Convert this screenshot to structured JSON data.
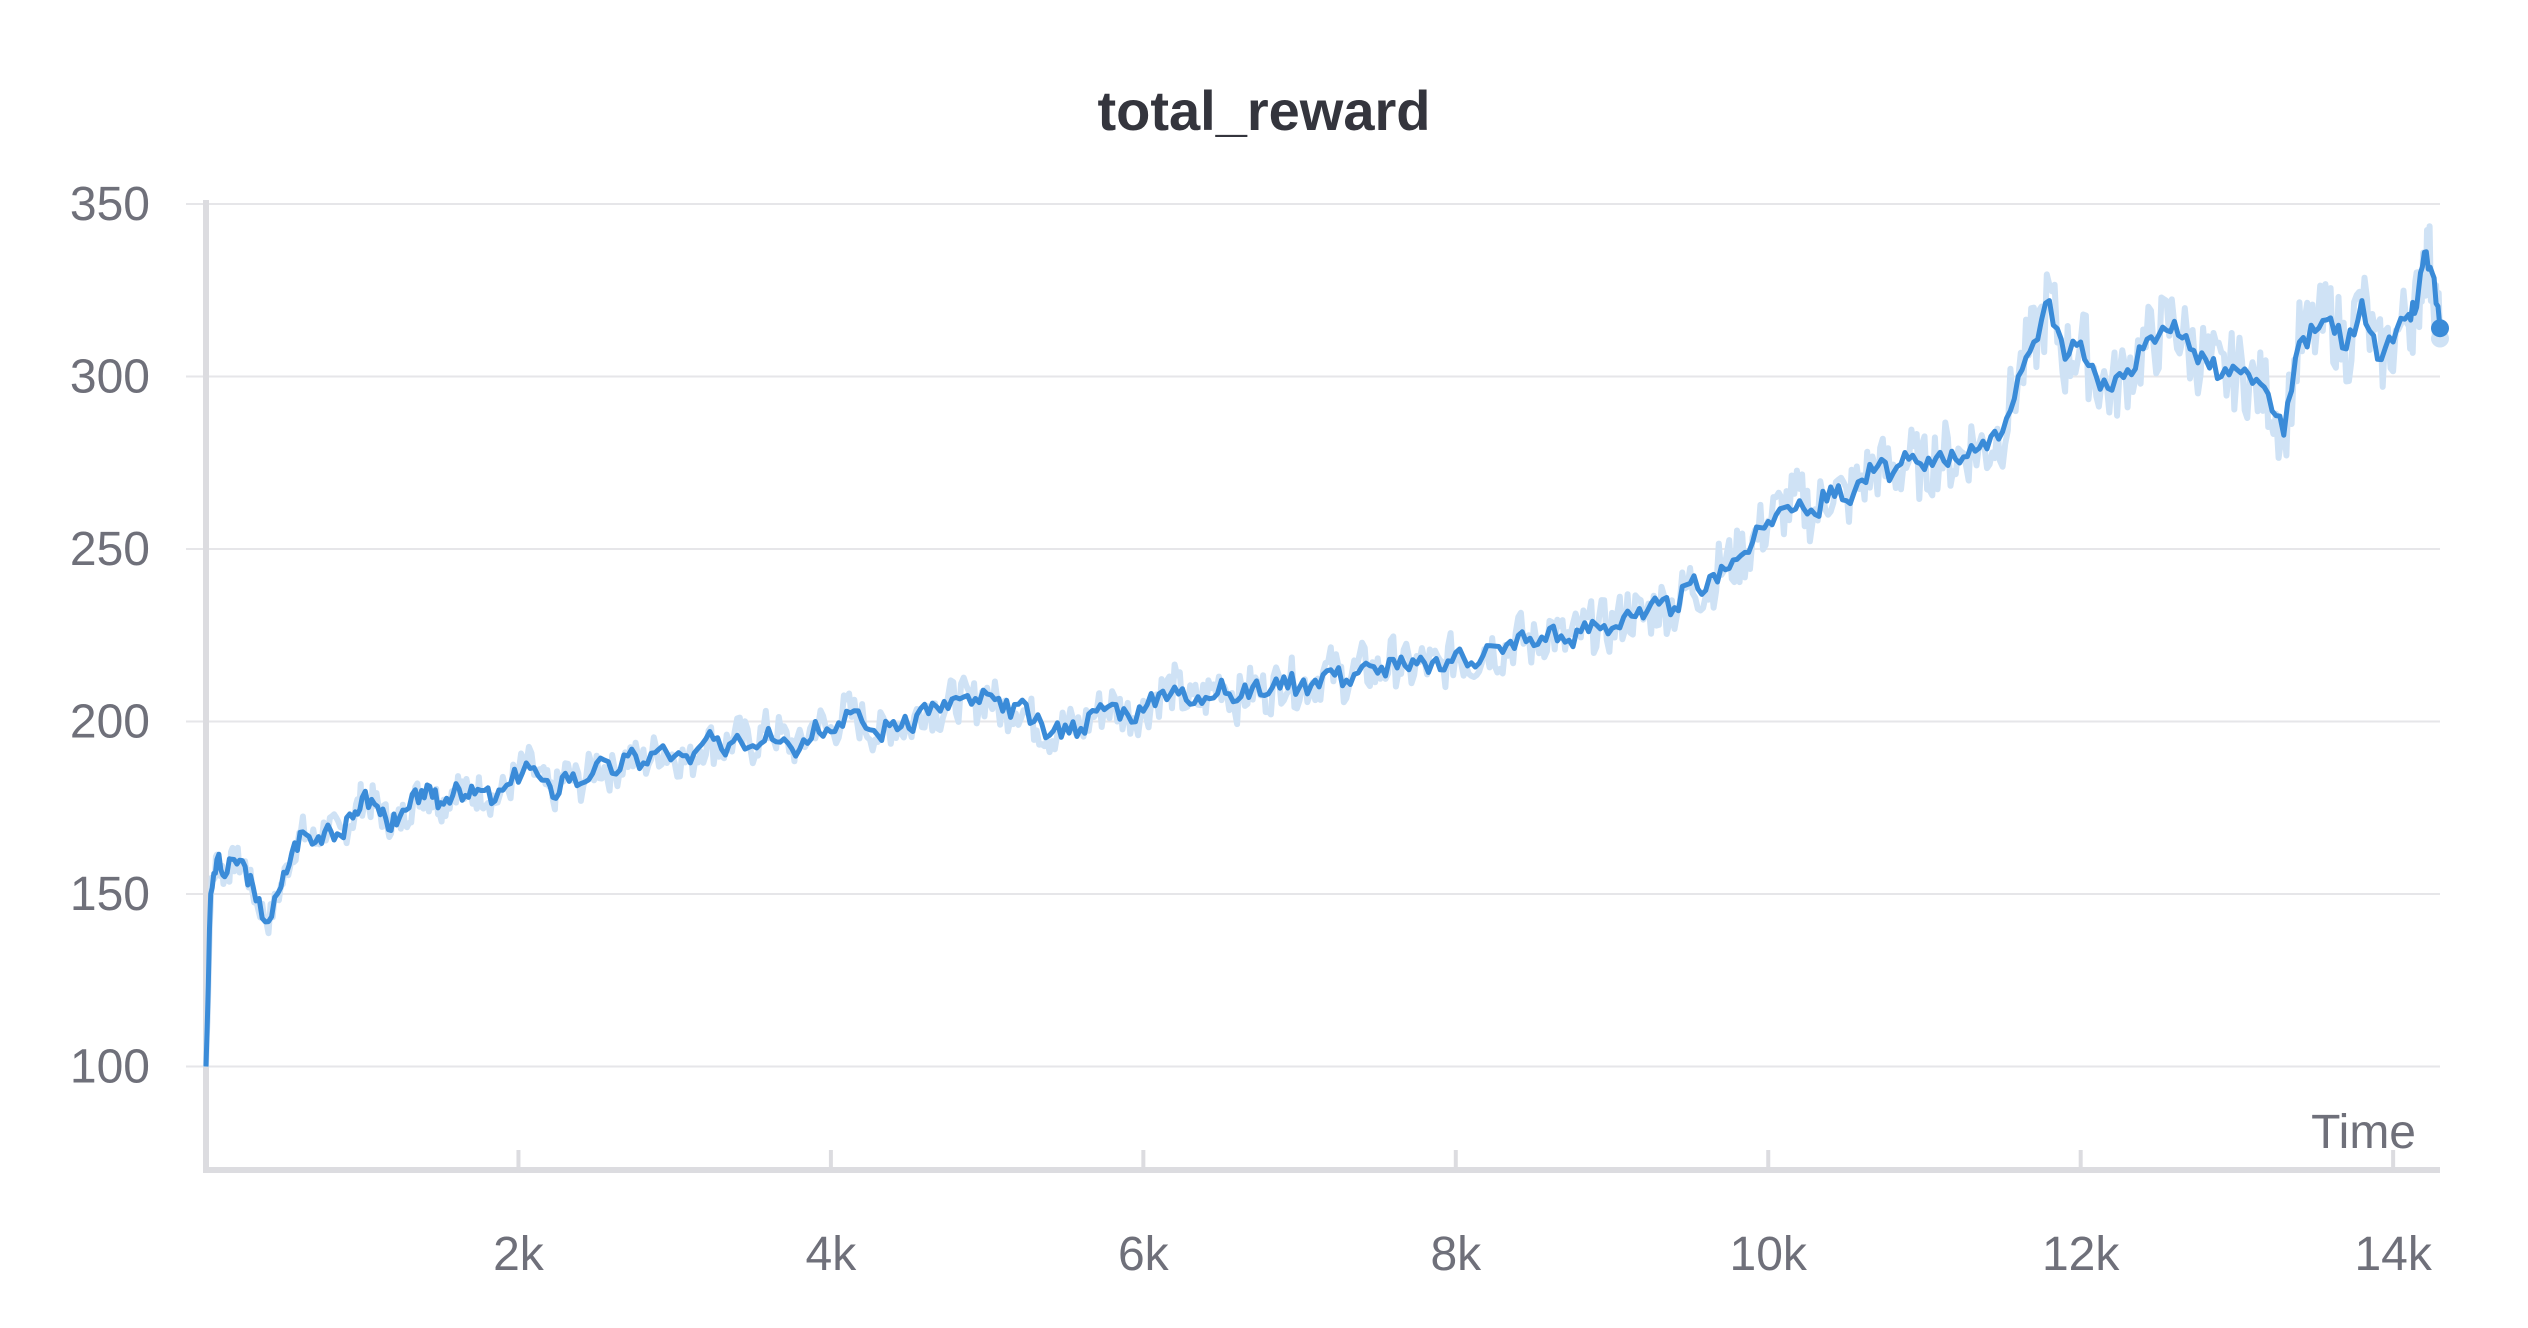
{
  "chart_data": {
    "type": "line",
    "title": "total_reward",
    "xlabel": "Time",
    "ylabel": "",
    "xlim": [
      0,
      14300
    ],
    "ylim": [
      70,
      350
    ],
    "x_ticks": [
      {
        "value": 2000,
        "label": "2k"
      },
      {
        "value": 4000,
        "label": "4k"
      },
      {
        "value": 6000,
        "label": "6k"
      },
      {
        "value": 8000,
        "label": "8k"
      },
      {
        "value": 10000,
        "label": "10k"
      },
      {
        "value": 12000,
        "label": "12k"
      },
      {
        "value": 14000,
        "label": "14k"
      }
    ],
    "y_ticks": [
      {
        "value": 100,
        "label": "100"
      },
      {
        "value": 150,
        "label": "150"
      },
      {
        "value": 200,
        "label": "200"
      },
      {
        "value": 250,
        "label": "250"
      },
      {
        "value": 300,
        "label": "300"
      },
      {
        "value": 350,
        "label": "350"
      }
    ],
    "grid": true,
    "line_color": "#3a8bd8",
    "raw_color": "#cfe2f5",
    "series": [
      {
        "x": [
          0,
          30,
          70,
          120,
          180,
          250,
          320,
          400,
          480,
          550,
          620,
          700,
          780,
          860,
          940,
          1000,
          1080,
          1150,
          1220,
          1300,
          1380,
          1450,
          1520,
          1600,
          1680,
          1760,
          1850,
          1950,
          2050,
          2150,
          2220,
          2300,
          2400,
          2500,
          2600,
          2700,
          2800,
          2900,
          3000,
          3100,
          3200,
          3300,
          3400,
          3500,
          3600,
          3700,
          3800,
          3900,
          4000,
          4100,
          4200,
          4300,
          4400,
          4500,
          4600,
          4700,
          4800,
          4900,
          5000,
          5100,
          5200,
          5300,
          5400,
          5500,
          5600,
          5700,
          5800,
          5900,
          6000,
          6100,
          6200,
          6300,
          6400,
          6500,
          6600,
          6700,
          6800,
          6900,
          7000,
          7100,
          7200,
          7300,
          7400,
          7500,
          7600,
          7700,
          7800,
          7900,
          8000,
          8100,
          8200,
          8300,
          8400,
          8500,
          8600,
          8700,
          8800,
          8900,
          9000,
          9100,
          9200,
          9300,
          9400,
          9500,
          9600,
          9700,
          9800,
          9900,
          10000,
          10100,
          10200,
          10300,
          10400,
          10500,
          10600,
          10700,
          10800,
          10900,
          11000,
          11100,
          11200,
          11300,
          11400,
          11500,
          11600,
          11700,
          11800,
          11900,
          12000,
          12100,
          12200,
          12300,
          12400,
          12500,
          12600,
          12700,
          12800,
          12900,
          13000,
          13100,
          13200,
          13300,
          13400,
          13500,
          13600,
          13700,
          13800,
          13900,
          14000,
          14100,
          14150,
          14200,
          14250,
          14300
        ],
        "values": [
          100,
          150,
          160,
          155,
          160,
          158,
          148,
          142,
          152,
          162,
          168,
          165,
          170,
          167,
          172,
          178,
          176,
          172,
          170,
          175,
          180,
          178,
          176,
          182,
          178,
          180,
          177,
          182,
          188,
          183,
          178,
          185,
          182,
          188,
          185,
          190,
          188,
          192,
          190,
          188,
          195,
          192,
          196,
          193,
          198,
          195,
          192,
          200,
          197,
          203,
          200,
          196,
          200,
          198,
          205,
          203,
          207,
          205,
          208,
          203,
          205,
          200,
          196,
          199,
          198,
          203,
          205,
          202,
          203,
          208,
          210,
          205,
          207,
          212,
          206,
          210,
          208,
          213,
          210,
          212,
          215,
          212,
          216,
          214,
          218,
          215,
          217,
          215,
          220,
          217,
          222,
          220,
          225,
          222,
          227,
          223,
          226,
          228,
          227,
          232,
          230,
          234,
          233,
          240,
          238,
          245,
          247,
          252,
          258,
          262,
          264,
          260,
          268,
          264,
          270,
          274,
          272,
          276,
          273,
          278,
          276,
          280,
          279,
          284,
          300,
          310,
          322,
          305,
          310,
          300,
          296,
          302,
          308,
          312,
          316,
          308,
          305,
          300,
          302,
          298,
          295,
          283,
          310,
          313,
          317,
          308,
          322,
          305,
          310,
          318,
          320,
          336,
          330,
          314
        ]
      }
    ]
  }
}
